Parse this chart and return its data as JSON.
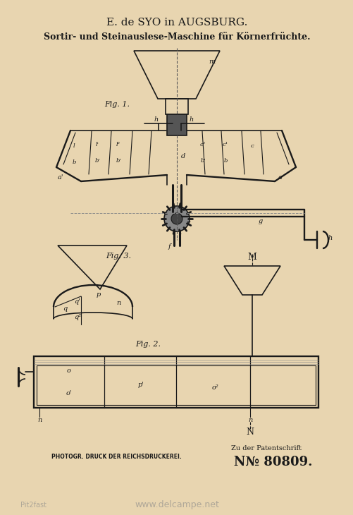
{
  "bg_color": "#e8d5b0",
  "title1": "E. de SYO in AUGSBURG.",
  "title2": "Sortir- und Steinauslese-Maschine für Körnerfrüchte.",
  "footer1": "PHOTOGR. DRUCK DER REICHSDRUCKEREI.",
  "footer2": "N№ 80809.",
  "footer3": "Zu der Patentschrift",
  "watermark": "www.delcampe.net",
  "watermark2": "Pit2fast",
  "fig1_label": "Fig. 1.",
  "fig2_label": "Fig. 2.",
  "fig3_label": "Fig. 3.",
  "line_color": "#1a1a1a",
  "draw_color": "#2a2a2a"
}
